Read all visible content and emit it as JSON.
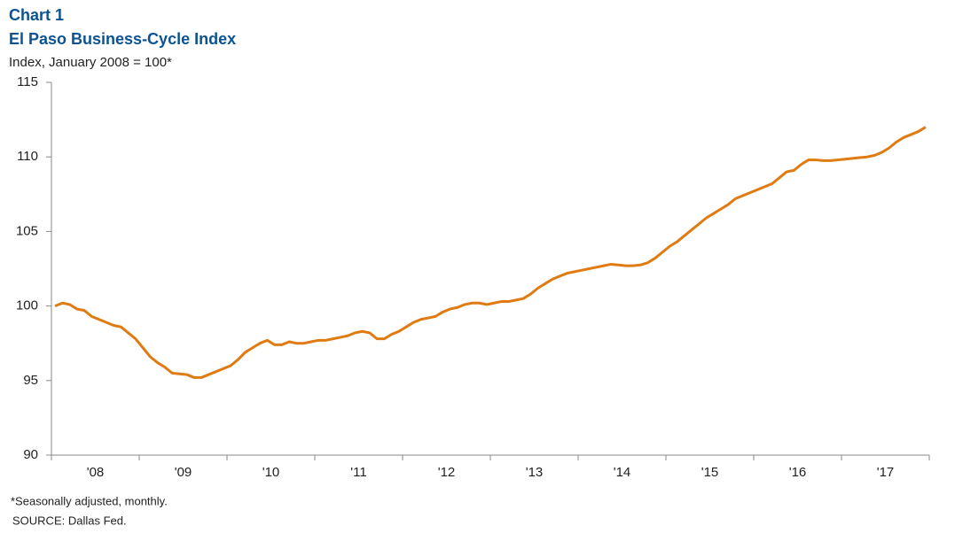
{
  "chart_data": {
    "type": "line",
    "title": "Chart 1",
    "subtitle": "El Paso Business-Cycle  Index",
    "y_label": "Index,  January 2008 = 100*",
    "notes": [
      "*Seasonally adjusted, monthly.",
      "SOURCE:  Dallas Fed."
    ],
    "categories": [
      null,
      null,
      null,
      null,
      null,
      null,
      "'08",
      null,
      null,
      null,
      null,
      null,
      null,
      null,
      null,
      null,
      null,
      null,
      "'09",
      null,
      null,
      null,
      null,
      null,
      null,
      null,
      null,
      null,
      null,
      null,
      "'10",
      null,
      null,
      null,
      null,
      null,
      null,
      null,
      null,
      null,
      null,
      null,
      "'11",
      null,
      null,
      null,
      null,
      null,
      null,
      null,
      null,
      null,
      null,
      null,
      "'12",
      null,
      null,
      null,
      null,
      null,
      null,
      null,
      null,
      null,
      null,
      null,
      "'13",
      null,
      null,
      null,
      null,
      null,
      null,
      null,
      null,
      null,
      null,
      null,
      "'14",
      null,
      null,
      null,
      null,
      null,
      null,
      null,
      null,
      null,
      null,
      null,
      "'15",
      null,
      null,
      null,
      null,
      null,
      null,
      null,
      null,
      null,
      null,
      null,
      "'16",
      null,
      null,
      null,
      null,
      null,
      null,
      null,
      null,
      null,
      null,
      null,
      "'17",
      null,
      null,
      null,
      null,
      null
    ],
    "color": "#e07b12",
    "values": [
      100.0,
      100.2,
      100.1,
      99.8,
      99.7,
      99.3,
      99.1,
      98.9,
      98.7,
      98.6,
      98.2,
      97.8,
      97.2,
      96.6,
      96.2,
      95.9,
      95.5,
      95.45,
      95.4,
      95.2,
      95.2,
      95.4,
      95.6,
      95.8,
      96.0,
      96.4,
      96.9,
      97.2,
      97.5,
      97.7,
      97.4,
      97.4,
      97.6,
      97.5,
      97.5,
      97.6,
      97.7,
      97.7,
      97.8,
      97.9,
      98.0,
      98.2,
      98.3,
      98.2,
      97.8,
      97.8,
      98.1,
      98.3,
      98.6,
      98.9,
      99.1,
      99.2,
      99.3,
      99.6,
      99.8,
      99.9,
      100.1,
      100.2,
      100.2,
      100.1,
      100.2,
      100.3,
      100.3,
      100.4,
      100.5,
      100.8,
      101.2,
      101.5,
      101.8,
      102.0,
      102.2,
      102.3,
      102.4,
      102.5,
      102.6,
      102.7,
      102.8,
      102.75,
      102.7,
      102.7,
      102.75,
      102.9,
      103.2,
      103.6,
      104.0,
      104.3,
      104.7,
      105.1,
      105.5,
      105.9,
      106.2,
      106.5,
      106.8,
      107.2,
      107.4,
      107.6,
      107.8,
      108.0,
      108.2,
      108.6,
      109.0,
      109.1,
      109.5,
      109.8,
      109.8,
      109.75,
      109.75,
      109.8,
      109.85,
      109.9,
      109.95,
      110.0,
      110.1,
      110.3,
      110.6,
      111.0,
      111.3,
      111.5,
      111.7,
      112.0
    ],
    "ylim": [
      90,
      115
    ],
    "yticks": [
      90,
      95,
      100,
      105,
      110,
      115
    ],
    "grid": false
  }
}
